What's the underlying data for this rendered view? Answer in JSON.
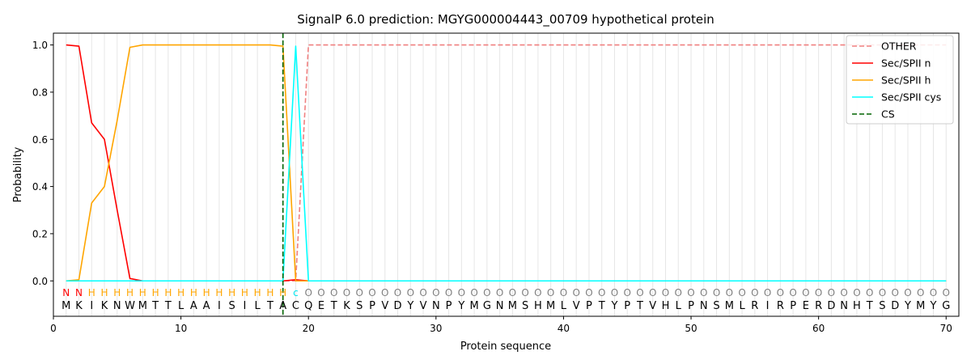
{
  "chart_data": {
    "type": "line",
    "title": "SignalP 6.0 prediction: MGYG000004443_00709 hypothetical protein",
    "xlabel": "Protein sequence",
    "ylabel": "Probability",
    "xlim": [
      0,
      71
    ],
    "ylim": [
      -0.15,
      1.05
    ],
    "xticks": [
      0,
      10,
      20,
      30,
      40,
      50,
      60,
      70
    ],
    "yticks": [
      0.0,
      0.2,
      0.4,
      0.6,
      0.8,
      1.0
    ],
    "ytick_labels": [
      "0.0",
      "0.2",
      "0.4",
      "0.6",
      "0.8",
      "1.0"
    ],
    "legend_position": "top-right",
    "sequence": "MKIKNWMTTLAAISILTACQETKSPVDYVNPYMGNMSHMLVPTYPTVHLPNSMLRIRPERDNHTSDYMYG",
    "labels": "NNHHHHHHHHHHHHHHHHcOOOOOOOOOOOOOOOOOOOOOOOOOOOOOOOOOOOOOOOOOOOOOOOOOOO",
    "label_colors": {
      "N": "#ff0000",
      "H": "#ffa500",
      "c": "#00e5ee",
      "O": "#808080"
    },
    "cleavage_site": 18,
    "series": [
      {
        "name": "OTHER",
        "color": "#f08080",
        "dash": "dashed",
        "values": [
          0,
          0,
          0,
          0,
          0,
          0,
          0,
          0,
          0,
          0,
          0,
          0,
          0,
          0,
          0,
          0,
          0,
          0,
          0,
          1,
          1,
          1,
          1,
          1,
          1,
          1,
          1,
          1,
          1,
          1,
          1,
          1,
          1,
          1,
          1,
          1,
          1,
          1,
          1,
          1,
          1,
          1,
          1,
          1,
          1,
          1,
          1,
          1,
          1,
          1,
          1,
          1,
          1,
          1,
          1,
          1,
          1,
          1,
          1,
          1,
          1,
          1,
          1,
          1,
          1,
          1,
          1,
          1,
          1,
          1
        ]
      },
      {
        "name": "Sec/SPII n",
        "color": "#ff0000",
        "dash": "solid",
        "values": [
          1.0,
          0.995,
          0.67,
          0.6,
          0.3,
          0.01,
          0,
          0,
          0,
          0,
          0,
          0,
          0,
          0,
          0,
          0,
          0,
          0,
          0.005,
          0,
          0,
          0,
          0,
          0,
          0,
          0,
          0,
          0,
          0,
          0,
          0,
          0,
          0,
          0,
          0,
          0,
          0,
          0,
          0,
          0,
          0,
          0,
          0,
          0,
          0,
          0,
          0,
          0,
          0,
          0,
          0,
          0,
          0,
          0,
          0,
          0,
          0,
          0,
          0,
          0,
          0,
          0,
          0,
          0,
          0,
          0,
          0,
          0,
          0,
          0
        ]
      },
      {
        "name": "Sec/SPII h",
        "color": "#ffa500",
        "dash": "solid",
        "values": [
          0,
          0.005,
          0.33,
          0.4,
          0.68,
          0.99,
          1.0,
          1.0,
          1.0,
          1.0,
          1.0,
          1.0,
          1.0,
          1.0,
          1.0,
          1.0,
          1.0,
          0.995,
          0,
          0,
          0,
          0,
          0,
          0,
          0,
          0,
          0,
          0,
          0,
          0,
          0,
          0,
          0,
          0,
          0,
          0,
          0,
          0,
          0,
          0,
          0,
          0,
          0,
          0,
          0,
          0,
          0,
          0,
          0,
          0,
          0,
          0,
          0,
          0,
          0,
          0,
          0,
          0,
          0,
          0,
          0,
          0,
          0,
          0,
          0,
          0,
          0,
          0,
          0,
          0
        ]
      },
      {
        "name": "Sec/SPII cys",
        "color": "#00ffff",
        "dash": "solid",
        "values": [
          0,
          0,
          0,
          0,
          0,
          0,
          0,
          0,
          0,
          0,
          0,
          0,
          0,
          0,
          0,
          0,
          0,
          0,
          0.995,
          0,
          0,
          0,
          0,
          0,
          0,
          0,
          0,
          0,
          0,
          0,
          0,
          0,
          0,
          0,
          0,
          0,
          0,
          0,
          0,
          0,
          0,
          0,
          0,
          0,
          0,
          0,
          0,
          0,
          0,
          0,
          0,
          0,
          0,
          0,
          0,
          0,
          0,
          0,
          0,
          0,
          0,
          0,
          0,
          0,
          0,
          0,
          0,
          0,
          0,
          0
        ]
      },
      {
        "name": "CS",
        "color": "#006400",
        "dash": "dashed",
        "values": []
      }
    ]
  }
}
